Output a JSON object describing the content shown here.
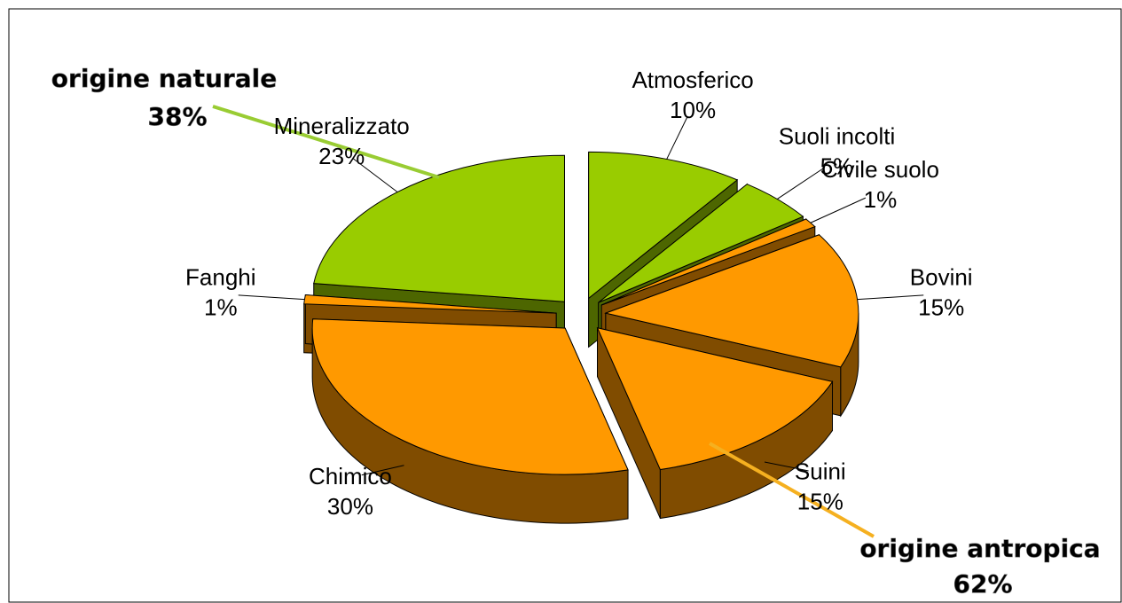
{
  "chart_data": {
    "type": "pie3d",
    "categories": [
      "Mineralizzato",
      "Atmosferico",
      "Suoli incolti",
      "Civile suolo",
      "Bovini",
      "Suini",
      "Chimico",
      "Fanghi"
    ],
    "values": [
      23,
      10,
      5,
      1,
      15,
      15,
      30,
      1
    ],
    "value_labels": [
      "23%",
      "10%",
      "5%",
      "1%",
      "15%",
      "15%",
      "30%",
      "1%"
    ],
    "colors": [
      "#99cc00",
      "#99cc00",
      "#99cc00",
      "#ff9900",
      "#ff9900",
      "#ff9900",
      "#ff9900",
      "#ff9900"
    ],
    "side_colors": [
      "#4d6600",
      "#4d6600",
      "#4d6600",
      "#804c00",
      "#804c00",
      "#804c00",
      "#804c00",
      "#804c00"
    ],
    "annotations": [
      {
        "text": "origine naturale",
        "label": "38%",
        "color": "#99cc33"
      },
      {
        "text": "origine antropica",
        "label": "62%",
        "color": "#f5b020"
      }
    ]
  }
}
